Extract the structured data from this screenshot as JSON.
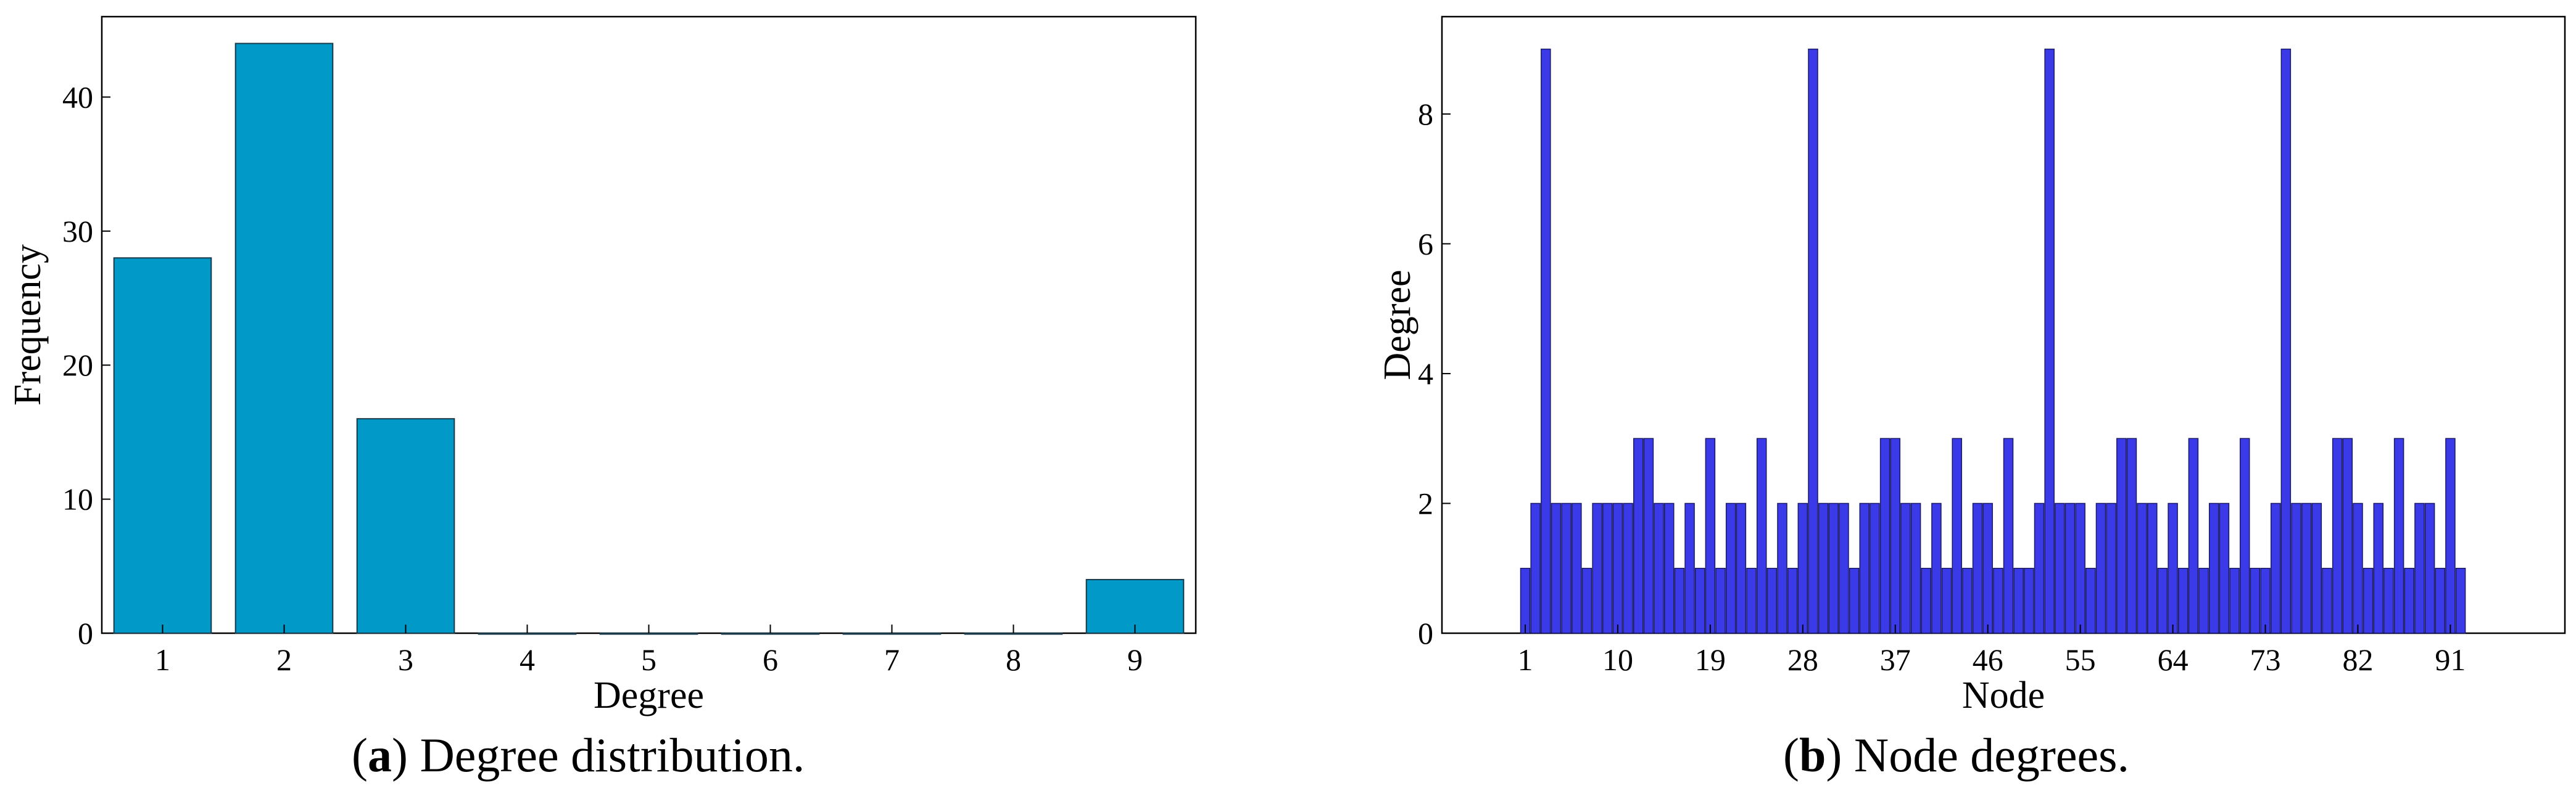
{
  "chart_data": [
    {
      "type": "bar",
      "categories": [
        "1",
        "2",
        "3",
        "4",
        "5",
        "6",
        "7",
        "8",
        "9"
      ],
      "values": [
        28,
        44,
        16,
        0,
        0,
        0,
        0,
        0,
        4
      ],
      "xlabel": "Degree",
      "ylabel": "Frequency",
      "ylim": [
        0,
        46
      ],
      "yticks": [
        0,
        10,
        20,
        30,
        40
      ],
      "grid": false,
      "bar_color": "#0099c8",
      "caption": {
        "letter": "a",
        "text": "Degree distribution."
      }
    },
    {
      "type": "bar",
      "x": [
        1,
        2,
        3,
        4,
        5,
        6,
        7,
        8,
        9,
        10,
        11,
        12,
        13,
        14,
        15,
        16,
        17,
        18,
        19,
        20,
        21,
        22,
        23,
        24,
        25,
        26,
        27,
        28,
        29,
        30,
        31,
        32,
        33,
        34,
        35,
        36,
        37,
        38,
        39,
        40,
        41,
        42,
        43,
        44,
        45,
        46,
        47,
        48,
        49,
        50,
        51,
        52,
        53,
        54,
        55,
        56,
        57,
        58,
        59,
        60,
        61,
        62,
        63,
        64,
        65,
        66,
        67,
        68,
        69,
        70,
        71,
        72,
        73,
        74,
        75,
        76,
        77,
        78,
        79,
        80,
        81,
        82,
        83,
        84,
        85,
        86,
        87,
        88,
        89,
        90,
        91,
        92
      ],
      "values": [
        1,
        2,
        9,
        2,
        2,
        2,
        1,
        2,
        2,
        2,
        2,
        3,
        3,
        2,
        2,
        1,
        2,
        1,
        3,
        1,
        2,
        2,
        1,
        3,
        1,
        2,
        1,
        2,
        9,
        2,
        2,
        2,
        1,
        2,
        2,
        3,
        3,
        2,
        2,
        1,
        2,
        1,
        3,
        1,
        2,
        2,
        1,
        3,
        1,
        1,
        2,
        9,
        2,
        2,
        2,
        1,
        2,
        2,
        3,
        3,
        2,
        2,
        1,
        2,
        1,
        3,
        1,
        2,
        2,
        1,
        3,
        1,
        1,
        2,
        9,
        2,
        2,
        2,
        1,
        3,
        3,
        2,
        1,
        2,
        1,
        3,
        1,
        2,
        2,
        1,
        3,
        1
      ],
      "xticks": [
        "1",
        "10",
        "19",
        "28",
        "37",
        "46",
        "55",
        "64",
        "73",
        "82",
        "91"
      ],
      "xlabel": "Node",
      "ylabel": "Degree",
      "ylim": [
        0,
        9.5
      ],
      "yticks": [
        0,
        2,
        4,
        6,
        8
      ],
      "grid": false,
      "bar_color": "#3a3ae8",
      "caption": {
        "letter": "b",
        "text": "Node degrees."
      }
    }
  ]
}
